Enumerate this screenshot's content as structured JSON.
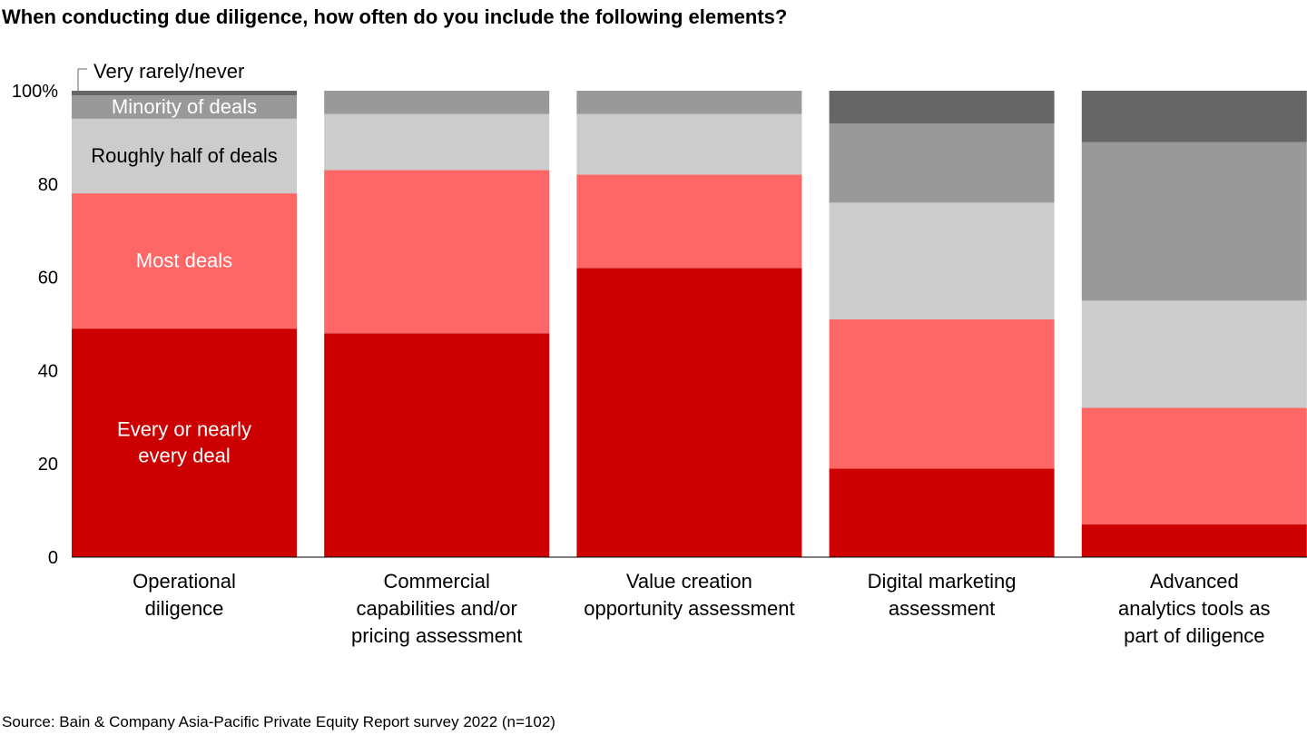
{
  "chart_data": {
    "type": "bar",
    "stacked": true,
    "title": "When conducting due diligence, how often do you include the following elements?",
    "categories": [
      "Operational diligence",
      "Commercial capabilities and/or pricing assessment",
      "Value creation opportunity assessment",
      "Digital marketing assessment",
      "Advanced analytics tools as part of diligence"
    ],
    "category_lines": [
      [
        "Operational",
        "diligence"
      ],
      [
        "Commercial",
        "capabilities and/or",
        "pricing assessment"
      ],
      [
        "Value creation",
        "opportunity assessment"
      ],
      [
        "Digital marketing",
        "assessment"
      ],
      [
        "Advanced",
        "analytics tools as",
        "part of diligence"
      ]
    ],
    "series": [
      {
        "name": "Every or nearly every deal",
        "label_lines": [
          "Every or nearly",
          "every deal"
        ],
        "color": "#cc0000",
        "label_color": "#ffffff",
        "values": [
          49,
          48,
          62,
          19,
          7
        ]
      },
      {
        "name": "Most deals",
        "label_lines": [
          "Most deals"
        ],
        "color": "#ff6666",
        "label_color": "#ffffff",
        "values": [
          29,
          35,
          20,
          32,
          25
        ]
      },
      {
        "name": "Roughly half of deals",
        "label_lines": [
          "Roughly half of deals"
        ],
        "color": "#cccccc",
        "label_color": "#000000",
        "values": [
          16,
          12,
          13,
          25,
          23
        ]
      },
      {
        "name": "Minority of deals",
        "label_lines": [
          "Minority of deals"
        ],
        "color": "#999999",
        "label_color": "#ffffff",
        "values": [
          5,
          5,
          5,
          17,
          34
        ]
      },
      {
        "name": "Very rarely/never",
        "label_lines": [
          "Very rarely/never"
        ],
        "color": "#666666",
        "label_color": "#000000",
        "values": [
          1,
          0,
          0,
          7,
          11
        ]
      }
    ],
    "ylim": [
      0,
      100
    ],
    "yticks": [
      "0",
      "20",
      "40",
      "60",
      "80",
      "100%"
    ],
    "ytick_values": [
      0,
      20,
      40,
      60,
      80,
      100
    ],
    "grid": false,
    "legend": "inline labels on first bar"
  },
  "source": "Source: Bain & Company Asia-Pacific Private Equity Report survey 2022 (n=102)"
}
